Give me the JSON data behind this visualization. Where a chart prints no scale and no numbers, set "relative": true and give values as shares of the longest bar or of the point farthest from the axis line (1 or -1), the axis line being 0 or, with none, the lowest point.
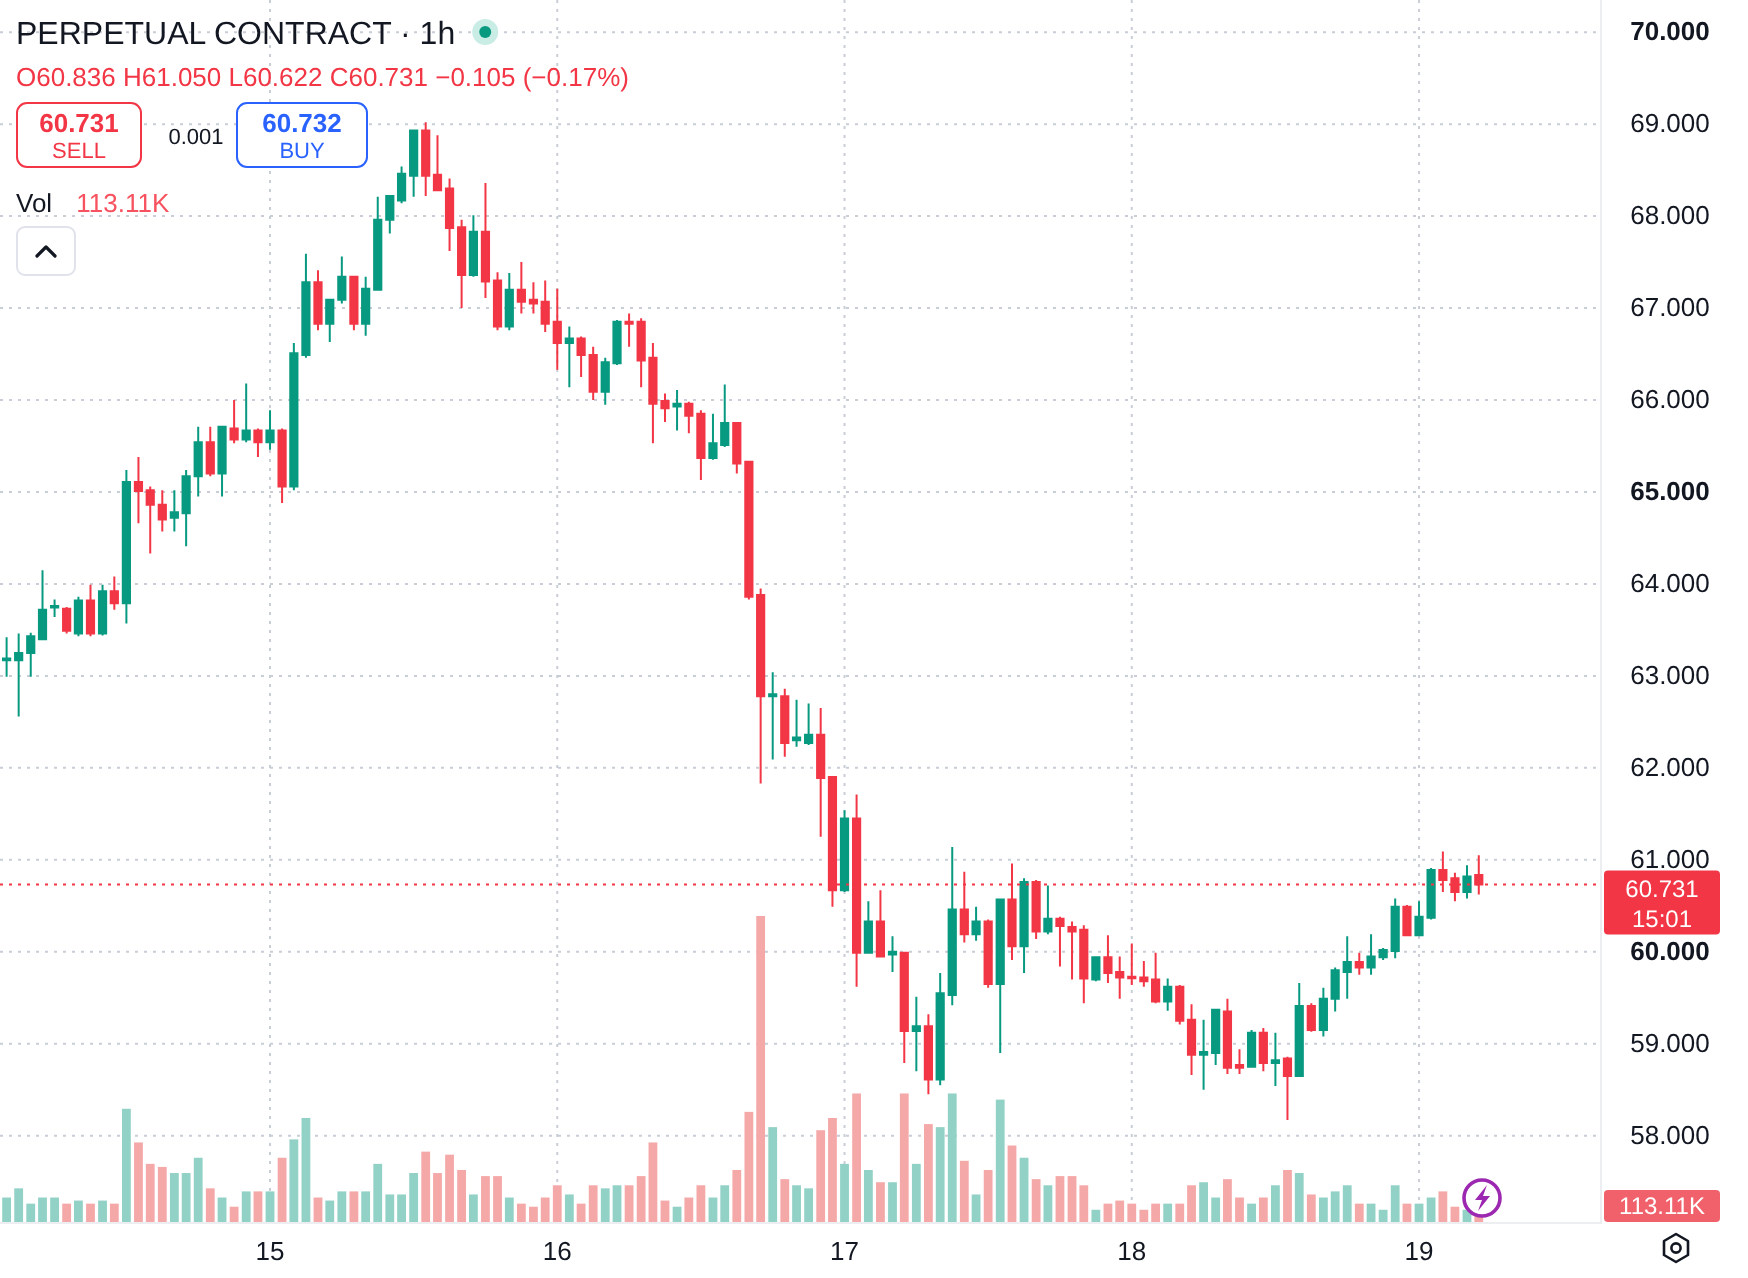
{
  "chart_data": [
    {
      "type": "candlestick",
      "title": "PERPETUAL CONTRACT · 1h",
      "subtitle": "O60.836 H61.050 L60.622 C60.731 −0.105 (−0.17%)",
      "annotations": [
        "60.731",
        "SELL",
        "0.001",
        "60.732",
        "BUY",
        "15:01"
      ],
      "x": [
        14.083,
        14.125,
        14.167,
        14.208,
        14.25,
        14.292,
        14.333,
        14.375,
        14.417,
        14.458,
        14.5,
        14.542,
        14.583,
        14.625,
        14.667,
        14.708,
        14.75,
        14.792,
        14.833,
        14.875,
        14.917,
        14.958,
        15,
        15.042,
        15.083,
        15.125,
        15.167,
        15.208,
        15.25,
        15.292,
        15.333,
        15.375,
        15.417,
        15.458,
        15.5,
        15.542,
        15.583,
        15.625,
        15.667,
        15.708,
        15.75,
        15.792,
        15.833,
        15.875,
        15.917,
        15.958,
        16,
        16.042,
        16.083,
        16.125,
        16.167,
        16.208,
        16.25,
        16.292,
        16.333,
        16.375,
        16.417,
        16.458,
        16.5,
        16.542,
        16.583,
        16.625,
        16.667,
        16.708,
        16.75,
        16.792,
        16.833,
        16.875,
        16.917,
        16.958,
        17,
        17.042,
        17.083,
        17.125,
        17.167,
        17.208,
        17.25,
        17.292,
        17.333,
        17.375,
        17.417,
        17.458,
        17.5,
        17.542,
        17.583,
        17.625,
        17.667,
        17.708,
        17.75,
        17.792,
        17.833,
        17.875,
        17.917,
        17.958,
        18,
        18.042,
        18.083,
        18.125,
        18.167,
        18.208,
        18.25,
        18.292,
        18.333,
        18.375,
        18.417,
        18.458,
        18.5,
        18.542,
        18.583,
        18.625,
        18.667,
        18.708,
        18.75,
        18.792,
        18.833,
        18.875,
        18.917,
        18.958,
        19,
        19.042,
        19.083,
        19.125,
        19.167,
        19.208
      ],
      "ohlc": [
        [
          63.17,
          63.42,
          62.99,
          63.19
        ],
        [
          63.17,
          63.46,
          62.56,
          63.25
        ],
        [
          63.25,
          63.47,
          62.99,
          63.43
        ],
        [
          63.4,
          64.15,
          63.4,
          63.72
        ],
        [
          63.75,
          63.83,
          63.64,
          63.76
        ],
        [
          63.73,
          63.75,
          63.46,
          63.49
        ],
        [
          63.46,
          63.86,
          63.43,
          63.82
        ],
        [
          63.82,
          63.99,
          63.43,
          63.46
        ],
        [
          63.46,
          63.99,
          63.44,
          63.92
        ],
        [
          63.92,
          64.08,
          63.72,
          63.79
        ],
        [
          63.79,
          65.24,
          63.57,
          65.11
        ],
        [
          65.11,
          65.38,
          64.66,
          65.01
        ],
        [
          65.02,
          65.06,
          64.33,
          64.86
        ],
        [
          64.86,
          65.02,
          64.57,
          64.7
        ],
        [
          64.72,
          65.02,
          64.57,
          64.78
        ],
        [
          64.77,
          65.24,
          64.41,
          65.17
        ],
        [
          65.17,
          65.71,
          64.95,
          65.54
        ],
        [
          65.54,
          65.71,
          65.17,
          65.2
        ],
        [
          65.2,
          65.71,
          64.95,
          65.71
        ],
        [
          65.69,
          66.0,
          65.53,
          65.57
        ],
        [
          65.57,
          66.18,
          65.54,
          65.67
        ],
        [
          65.67,
          65.69,
          65.38,
          65.54
        ],
        [
          65.54,
          65.89,
          65.46,
          65.67
        ],
        [
          65.67,
          65.69,
          64.88,
          65.06
        ],
        [
          65.06,
          66.62,
          65.02,
          66.51
        ],
        [
          66.49,
          67.59,
          66.46,
          67.28
        ],
        [
          67.28,
          67.41,
          66.76,
          66.83
        ],
        [
          66.83,
          67.09,
          66.63,
          67.09
        ],
        [
          67.09,
          67.56,
          67.05,
          67.34
        ],
        [
          67.34,
          67.34,
          66.76,
          66.83
        ],
        [
          66.83,
          67.34,
          66.7,
          67.21
        ],
        [
          67.2,
          68.21,
          67.2,
          67.96
        ],
        [
          67.96,
          68.22,
          67.81,
          68.22
        ],
        [
          68.17,
          68.54,
          68.14,
          68.46
        ],
        [
          68.44,
          68.93,
          68.21,
          68.93
        ],
        [
          68.93,
          69.02,
          68.22,
          68.44
        ],
        [
          68.45,
          68.88,
          68.27,
          68.28
        ],
        [
          68.3,
          68.41,
          67.62,
          67.87
        ],
        [
          67.88,
          67.96,
          67.0,
          67.36
        ],
        [
          67.36,
          68.01,
          67.34,
          67.83
        ],
        [
          67.83,
          68.36,
          67.11,
          67.29
        ],
        [
          67.3,
          67.39,
          66.76,
          66.8
        ],
        [
          66.8,
          67.38,
          66.76,
          67.2
        ],
        [
          67.2,
          67.5,
          66.94,
          67.07
        ],
        [
          67.09,
          67.28,
          66.94,
          67.05
        ],
        [
          67.07,
          67.3,
          66.74,
          66.83
        ],
        [
          66.85,
          67.21,
          66.33,
          66.62
        ],
        [
          66.62,
          66.8,
          66.14,
          66.67
        ],
        [
          66.67,
          66.69,
          66.25,
          66.49
        ],
        [
          66.49,
          66.58,
          66.0,
          66.09
        ],
        [
          66.09,
          66.46,
          65.95,
          66.41
        ],
        [
          66.4,
          66.87,
          66.38,
          66.85
        ],
        [
          66.85,
          66.94,
          66.58,
          66.83
        ],
        [
          66.85,
          66.89,
          66.14,
          66.43
        ],
        [
          66.46,
          66.62,
          65.53,
          65.96
        ],
        [
          65.99,
          66.07,
          65.76,
          65.91
        ],
        [
          65.93,
          66.11,
          65.67,
          65.96
        ],
        [
          65.96,
          65.98,
          65.64,
          65.83
        ],
        [
          65.85,
          65.89,
          65.13,
          65.37
        ],
        [
          65.37,
          65.85,
          65.35,
          65.53
        ],
        [
          65.51,
          66.17,
          65.49,
          65.75
        ],
        [
          65.75,
          65.76,
          65.2,
          65.31
        ],
        [
          65.33,
          65.33,
          63.83,
          63.86
        ],
        [
          63.88,
          63.95,
          61.83,
          62.78
        ],
        [
          62.78,
          63.04,
          62.09,
          62.8
        ],
        [
          62.78,
          62.86,
          62.12,
          62.27
        ],
        [
          62.3,
          62.74,
          62.23,
          62.33
        ],
        [
          62.27,
          62.7,
          62.25,
          62.36
        ],
        [
          62.36,
          62.65,
          61.25,
          61.89
        ],
        [
          61.9,
          61.9,
          60.49,
          60.67
        ],
        [
          60.67,
          61.54,
          60.65,
          61.45
        ],
        [
          61.45,
          61.71,
          59.62,
          59.99
        ],
        [
          59.99,
          60.55,
          59.98,
          60.33
        ],
        [
          60.33,
          60.67,
          59.95,
          59.95
        ],
        [
          59.97,
          60.17,
          59.78,
          60.0
        ],
        [
          59.99,
          59.99,
          58.79,
          59.14
        ],
        [
          59.14,
          59.51,
          58.7,
          59.19
        ],
        [
          59.19,
          59.32,
          58.45,
          58.61
        ],
        [
          58.61,
          59.77,
          58.55,
          59.55
        ],
        [
          59.53,
          61.14,
          59.42,
          60.46
        ],
        [
          60.46,
          60.87,
          60.1,
          60.19
        ],
        [
          60.19,
          60.49,
          60.12,
          60.33
        ],
        [
          60.33,
          60.35,
          59.61,
          59.65
        ],
        [
          59.65,
          60.58,
          58.9,
          60.57
        ],
        [
          60.57,
          60.96,
          59.91,
          60.06
        ],
        [
          60.06,
          60.8,
          59.77,
          60.76
        ],
        [
          60.76,
          60.78,
          60.14,
          60.22
        ],
        [
          60.22,
          60.72,
          60.19,
          60.36
        ],
        [
          60.36,
          60.38,
          59.84,
          60.28
        ],
        [
          60.27,
          60.33,
          59.7,
          60.22
        ],
        [
          60.24,
          60.29,
          59.44,
          59.71
        ],
        [
          59.7,
          59.95,
          59.68,
          59.94
        ],
        [
          59.94,
          60.18,
          59.66,
          59.77
        ],
        [
          59.78,
          59.95,
          59.49,
          59.72
        ],
        [
          59.73,
          60.09,
          59.64,
          59.72
        ],
        [
          59.72,
          59.9,
          59.62,
          59.68
        ],
        [
          59.7,
          59.99,
          59.44,
          59.46
        ],
        [
          59.46,
          59.71,
          59.36,
          59.62
        ],
        [
          59.62,
          59.64,
          59.21,
          59.25
        ],
        [
          59.26,
          59.43,
          58.66,
          58.88
        ],
        [
          58.88,
          59.26,
          58.5,
          58.91
        ],
        [
          58.9,
          59.37,
          58.77,
          59.37
        ],
        [
          59.35,
          59.49,
          58.67,
          58.74
        ],
        [
          58.77,
          58.94,
          58.67,
          58.74
        ],
        [
          58.75,
          59.15,
          58.74,
          59.12
        ],
        [
          59.12,
          59.17,
          58.7,
          58.79
        ],
        [
          58.79,
          59.12,
          58.54,
          58.82
        ],
        [
          58.84,
          58.86,
          58.17,
          58.65
        ],
        [
          58.65,
          59.66,
          58.65,
          59.41
        ],
        [
          59.41,
          59.44,
          59.13,
          59.15
        ],
        [
          59.15,
          59.61,
          59.08,
          59.49
        ],
        [
          59.49,
          59.83,
          59.35,
          59.8
        ],
        [
          59.78,
          60.17,
          59.49,
          59.89
        ],
        [
          59.89,
          59.99,
          59.75,
          59.83
        ],
        [
          59.83,
          60.19,
          59.75,
          59.95
        ],
        [
          59.94,
          60.04,
          59.91,
          60.02
        ],
        [
          60.01,
          60.58,
          59.93,
          60.49
        ],
        [
          60.49,
          60.51,
          60.17,
          60.18
        ],
        [
          60.18,
          60.55,
          60.17,
          60.38
        ],
        [
          60.37,
          60.91,
          60.35,
          60.89
        ],
        [
          60.89,
          61.09,
          60.65,
          60.78
        ],
        [
          60.8,
          60.86,
          60.55,
          60.65
        ],
        [
          60.65,
          60.94,
          60.58,
          60.82
        ],
        [
          60.836,
          61.05,
          60.622,
          60.731
        ]
      ],
      "colors": [
        "#089981",
        "#089981",
        "#089981",
        "#089981",
        "#089981",
        "#f23645",
        "#089981",
        "#f23645",
        "#089981",
        "#f23645",
        "#089981",
        "#f23645",
        "#f23645",
        "#f23645",
        "#089981",
        "#089981",
        "#089981",
        "#f23645",
        "#089981",
        "#f23645",
        "#089981",
        "#f23645",
        "#089981",
        "#f23645",
        "#089981",
        "#089981",
        "#f23645",
        "#089981",
        "#089981",
        "#f23645",
        "#089981",
        "#089981",
        "#089981",
        "#089981",
        "#089981",
        "#f23645",
        "#f23645",
        "#f23645",
        "#f23645",
        "#089981",
        "#f23645",
        "#f23645",
        "#089981",
        "#f23645",
        "#f23645",
        "#f23645",
        "#f23645",
        "#089981",
        "#f23645",
        "#f23645",
        "#089981",
        "#089981",
        "#f23645",
        "#f23645",
        "#f23645",
        "#f23645",
        "#089981",
        "#f23645",
        "#f23645",
        "#089981",
        "#089981",
        "#f23645",
        "#f23645",
        "#f23645",
        "#089981",
        "#f23645",
        "#089981",
        "#089981",
        "#f23645",
        "#f23645",
        "#089981",
        "#f23645",
        "#089981",
        "#f23645",
        "#089981",
        "#f23645",
        "#089981",
        "#f23645",
        "#089981",
        "#089981",
        "#f23645",
        "#089981",
        "#f23645",
        "#089981",
        "#f23645",
        "#089981",
        "#f23645",
        "#089981",
        "#f23645",
        "#f23645",
        "#f23645",
        "#089981",
        "#f23645",
        "#f23645",
        "#f23645",
        "#f23645",
        "#f23645",
        "#089981",
        "#f23645",
        "#f23645",
        "#089981",
        "#089981",
        "#f23645",
        "#f23645",
        "#089981",
        "#f23645",
        "#089981",
        "#f23645",
        "#089981",
        "#f23645",
        "#089981",
        "#089981",
        "#089981",
        "#f23645",
        "#089981",
        "#089981",
        "#089981",
        "#f23645",
        "#089981",
        "#089981",
        "#f23645",
        "#f23645",
        "#089981",
        "#f23645"
      ],
      "xlim": [
        14.06,
        19.63
      ],
      "xticks": [
        15,
        16,
        17,
        18,
        19
      ],
      "ylim": [
        57.04,
        70.35
      ],
      "yticks": [
        {
          "value": 58,
          "label": "58.000"
        },
        {
          "value": 59,
          "label": "59.000"
        },
        {
          "value": 60,
          "label": "60.000"
        },
        {
          "value": 61,
          "label": "61.000"
        },
        {
          "value": 62,
          "label": "62.000"
        },
        {
          "value": 63,
          "label": "63.000"
        },
        {
          "value": 64,
          "label": "64.000"
        },
        {
          "value": 65,
          "label": "65.000"
        },
        {
          "value": 66,
          "label": "66.000"
        },
        {
          "value": 67,
          "label": "67.000"
        },
        {
          "value": 68,
          "label": "68.000"
        },
        {
          "value": 69,
          "label": "69.000"
        },
        {
          "value": 70,
          "label": "70.000"
        }
      ],
      "grid": true,
      "tick_labels": "y",
      "ref_lines": [
        {
          "axis": "y",
          "value": 60.731,
          "label": "60.731",
          "color": "#f23645",
          "line_style": "dotted"
        }
      ]
    },
    {
      "type": "bar",
      "title": "Vol",
      "subtitle": "113.11K",
      "annotations": [
        "113.11K"
      ],
      "relative": true,
      "tick_labels": "x",
      "x": [
        14.083,
        14.125,
        14.167,
        14.208,
        14.25,
        14.292,
        14.333,
        14.375,
        14.417,
        14.458,
        14.5,
        14.542,
        14.583,
        14.625,
        14.667,
        14.708,
        14.75,
        14.792,
        14.833,
        14.875,
        14.917,
        14.958,
        15,
        15.042,
        15.083,
        15.125,
        15.167,
        15.208,
        15.25,
        15.292,
        15.333,
        15.375,
        15.417,
        15.458,
        15.5,
        15.542,
        15.583,
        15.625,
        15.667,
        15.708,
        15.75,
        15.792,
        15.833,
        15.875,
        15.917,
        15.958,
        16,
        16.042,
        16.083,
        16.125,
        16.167,
        16.208,
        16.25,
        16.292,
        16.333,
        16.375,
        16.417,
        16.458,
        16.5,
        16.542,
        16.583,
        16.625,
        16.667,
        16.708,
        16.75,
        16.792,
        16.833,
        16.875,
        16.917,
        16.958,
        17,
        17.042,
        17.083,
        17.125,
        17.167,
        17.208,
        17.25,
        17.292,
        17.333,
        17.375,
        17.417,
        17.458,
        17.5,
        17.542,
        17.583,
        17.625,
        17.667,
        17.708,
        17.75,
        17.792,
        17.833,
        17.875,
        17.917,
        17.958,
        18,
        18.042,
        18.083,
        18.125,
        18.167,
        18.208,
        18.25,
        18.292,
        18.333,
        18.375,
        18.417,
        18.458,
        18.5,
        18.542,
        18.583,
        18.625,
        18.667,
        18.708,
        18.75,
        18.792,
        18.833,
        18.875,
        18.917,
        18.958,
        19,
        19.042,
        19.083,
        19.125,
        19.167,
        19.208
      ],
      "values": [
        0.08,
        0.11,
        0.06,
        0.08,
        0.08,
        0.06,
        0.07,
        0.06,
        0.07,
        0.06,
        0.37,
        0.26,
        0.19,
        0.18,
        0.16,
        0.16,
        0.21,
        0.11,
        0.08,
        0.05,
        0.1,
        0.1,
        0.1,
        0.21,
        0.27,
        0.34,
        0.08,
        0.07,
        0.1,
        0.1,
        0.1,
        0.19,
        0.09,
        0.09,
        0.16,
        0.23,
        0.16,
        0.22,
        0.17,
        0.09,
        0.15,
        0.15,
        0.08,
        0.06,
        0.05,
        0.08,
        0.12,
        0.09,
        0.06,
        0.12,
        0.11,
        0.12,
        0.12,
        0.15,
        0.26,
        0.07,
        0.05,
        0.08,
        0.12,
        0.08,
        0.12,
        0.17,
        0.36,
        1,
        0.31,
        0.14,
        0.12,
        0.11,
        0.3,
        0.34,
        0.19,
        0.42,
        0.17,
        0.13,
        0.13,
        0.42,
        0.19,
        0.32,
        0.31,
        0.42,
        0.2,
        0.09,
        0.17,
        0.4,
        0.25,
        0.21,
        0.14,
        0.12,
        0.15,
        0.15,
        0.12,
        0.04,
        0.06,
        0.07,
        0.06,
        0.04,
        0.06,
        0.06,
        0.06,
        0.12,
        0.13,
        0.08,
        0.14,
        0.08,
        0.06,
        0.08,
        0.12,
        0.17,
        0.16,
        0.09,
        0.08,
        0.1,
        0.12,
        0.06,
        0.06,
        0.04,
        0.12,
        0.06,
        0.06,
        0.08,
        0.1,
        0.05,
        0.04,
        0.03
      ],
      "colors": [
        "#91d1c6",
        "#91d1c6",
        "#91d1c6",
        "#91d1c6",
        "#91d1c6",
        "#f5a8a8",
        "#91d1c6",
        "#f5a8a8",
        "#91d1c6",
        "#f5a8a8",
        "#91d1c6",
        "#f5a8a8",
        "#f5a8a8",
        "#f5a8a8",
        "#91d1c6",
        "#91d1c6",
        "#91d1c6",
        "#f5a8a8",
        "#91d1c6",
        "#f5a8a8",
        "#91d1c6",
        "#f5a8a8",
        "#91d1c6",
        "#f5a8a8",
        "#91d1c6",
        "#91d1c6",
        "#f5a8a8",
        "#91d1c6",
        "#91d1c6",
        "#f5a8a8",
        "#91d1c6",
        "#91d1c6",
        "#91d1c6",
        "#91d1c6",
        "#91d1c6",
        "#f5a8a8",
        "#f5a8a8",
        "#f5a8a8",
        "#f5a8a8",
        "#91d1c6",
        "#f5a8a8",
        "#f5a8a8",
        "#91d1c6",
        "#f5a8a8",
        "#f5a8a8",
        "#f5a8a8",
        "#f5a8a8",
        "#91d1c6",
        "#f5a8a8",
        "#f5a8a8",
        "#91d1c6",
        "#91d1c6",
        "#f5a8a8",
        "#f5a8a8",
        "#f5a8a8",
        "#f5a8a8",
        "#91d1c6",
        "#f5a8a8",
        "#f5a8a8",
        "#91d1c6",
        "#91d1c6",
        "#f5a8a8",
        "#f5a8a8",
        "#f5a8a8",
        "#91d1c6",
        "#f5a8a8",
        "#91d1c6",
        "#91d1c6",
        "#f5a8a8",
        "#f5a8a8",
        "#91d1c6",
        "#f5a8a8",
        "#91d1c6",
        "#f5a8a8",
        "#91d1c6",
        "#f5a8a8",
        "#91d1c6",
        "#f5a8a8",
        "#91d1c6",
        "#91d1c6",
        "#f5a8a8",
        "#91d1c6",
        "#f5a8a8",
        "#91d1c6",
        "#f5a8a8",
        "#91d1c6",
        "#f5a8a8",
        "#91d1c6",
        "#f5a8a8",
        "#f5a8a8",
        "#f5a8a8",
        "#91d1c6",
        "#f5a8a8",
        "#f5a8a8",
        "#f5a8a8",
        "#f5a8a8",
        "#f5a8a8",
        "#91d1c6",
        "#f5a8a8",
        "#f5a8a8",
        "#91d1c6",
        "#91d1c6",
        "#f5a8a8",
        "#f5a8a8",
        "#91d1c6",
        "#f5a8a8",
        "#91d1c6",
        "#f5a8a8",
        "#91d1c6",
        "#f5a8a8",
        "#91d1c6",
        "#91d1c6",
        "#91d1c6",
        "#f5a8a8",
        "#91d1c6",
        "#91d1c6",
        "#91d1c6",
        "#f5a8a8",
        "#91d1c6",
        "#91d1c6",
        "#f5a8a8",
        "#f5a8a8",
        "#91d1c6",
        "#f5a8a8"
      ],
      "xlim": [
        14.06,
        19.63
      ],
      "xticks": [
        15,
        16,
        17,
        18,
        19
      ]
    }
  ]
}
